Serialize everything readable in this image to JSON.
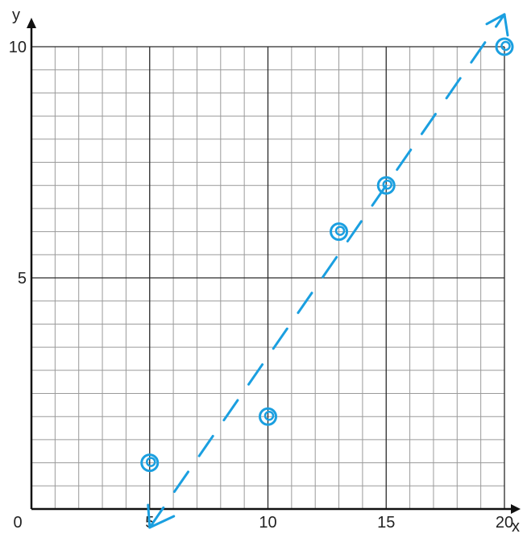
{
  "chart_data": {
    "type": "scatter",
    "title": "",
    "xlabel": "x",
    "ylabel": "y",
    "origin_label": "0",
    "xlim": [
      0,
      20
    ],
    "ylim": [
      0,
      10
    ],
    "x_ticks": [
      {
        "value": 5,
        "label": "5"
      },
      {
        "value": 10,
        "label": "10"
      },
      {
        "value": 15,
        "label": "15"
      },
      {
        "value": 20,
        "label": "20"
      }
    ],
    "y_ticks": [
      {
        "value": 5,
        "label": "5"
      },
      {
        "value": 10,
        "label": "10"
      }
    ],
    "minor_grid_step": 1,
    "major_grid_step": 5,
    "grid": true,
    "points": [
      {
        "x": 5,
        "y": 1
      },
      {
        "x": 10,
        "y": 2
      },
      {
        "x": 13,
        "y": 6
      },
      {
        "x": 15,
        "y": 7
      },
      {
        "x": 20,
        "y": 10
      }
    ],
    "trend_line": {
      "style": "dashed-arrow",
      "start": {
        "x": 5,
        "y": -0.4
      },
      "end": {
        "x": 20,
        "y": 10.7
      }
    }
  },
  "colors": {
    "grid_minor": "#9a9a9a",
    "grid_major": "#2a2a2a",
    "axis": "#111111",
    "ink": "#1a9fe0",
    "text": "#222222"
  }
}
